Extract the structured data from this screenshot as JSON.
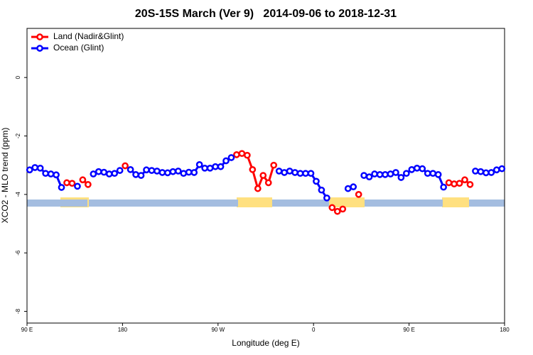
{
  "chart_data": {
    "type": "line",
    "title": "20S-15S March (Ver 9)   2014-09-06 to 2018-12-31",
    "xlabel": "Longitude (deg E)",
    "ylabel": "XCO2 - MLO trend (ppm)",
    "legend": "topleft",
    "xlim": [
      90,
      540
    ],
    "ylim": [
      -8.4,
      1.68
    ],
    "xticks": [
      {
        "value": 90,
        "label": "90 E"
      },
      {
        "value": 180,
        "label": "180"
      },
      {
        "value": 270,
        "label": "90 W"
      },
      {
        "value": 360,
        "label": "0"
      },
      {
        "value": 450,
        "label": "90 E"
      },
      {
        "value": 540,
        "label": "180"
      }
    ],
    "yticks": [
      0,
      -2,
      -4,
      -6,
      -8
    ],
    "x": [
      92.5,
      97.5,
      102.5,
      107.5,
      112.5,
      117.5,
      122.5,
      127.5,
      132.5,
      137.5,
      142.5,
      147.5,
      152.5,
      157.5,
      162.5,
      167.5,
      172.5,
      177.5,
      182.5,
      187.5,
      192.5,
      197.5,
      202.5,
      207.5,
      212.5,
      217.5,
      222.5,
      227.5,
      232.5,
      237.5,
      242.5,
      247.5,
      252.5,
      257.5,
      262.5,
      267.5,
      272.5,
      277.5,
      282.5,
      287.5,
      292.5,
      297.5,
      302.5,
      307.5,
      312.5,
      317.5,
      322.5,
      327.5,
      332.5,
      337.5,
      342.5,
      347.5,
      352.5,
      357.5,
      362.5,
      367.5,
      372.5,
      377.5,
      382.5,
      387.5,
      392.5,
      397.5,
      402.5,
      407.5,
      412.5,
      417.5,
      422.5,
      427.5,
      432.5,
      437.5,
      442.5,
      447.5,
      452.5,
      457.5,
      462.5,
      467.5,
      472.5,
      477.5,
      482.5,
      487.5,
      492.5,
      497.5,
      502.5,
      507.5,
      512.5,
      517.5,
      522.5,
      527.5,
      532.5,
      537.5
    ],
    "series": [
      {
        "name": "Land (Nadir&Glint)",
        "color": "#ff0000",
        "values": [
          null,
          null,
          null,
          null,
          null,
          null,
          null,
          -3.6,
          -3.62,
          null,
          -3.5,
          -3.66,
          null,
          null,
          null,
          null,
          null,
          null,
          -3.02,
          null,
          null,
          null,
          null,
          null,
          null,
          null,
          null,
          null,
          null,
          null,
          null,
          null,
          null,
          null,
          null,
          null,
          null,
          null,
          null,
          -2.64,
          -2.6,
          -2.66,
          -3.15,
          -3.8,
          -3.35,
          -3.6,
          -3.0,
          null,
          null,
          null,
          null,
          null,
          null,
          null,
          null,
          null,
          null,
          -4.45,
          -4.58,
          -4.5,
          null,
          null,
          -4.0,
          null,
          null,
          null,
          null,
          null,
          null,
          null,
          null,
          null,
          null,
          null,
          null,
          null,
          null,
          null,
          null,
          -3.6,
          -3.64,
          -3.62,
          -3.5,
          -3.66,
          null,
          null,
          null,
          null,
          null,
          null
        ]
      },
      {
        "name": "Ocean (Glint)",
        "color": "#0000ff",
        "values": [
          -3.16,
          -3.08,
          -3.1,
          -3.28,
          -3.3,
          -3.33,
          -3.76,
          null,
          null,
          -3.72,
          null,
          null,
          -3.3,
          -3.22,
          -3.24,
          -3.3,
          -3.28,
          -3.18,
          null,
          -3.15,
          -3.32,
          -3.35,
          -3.16,
          -3.18,
          -3.2,
          -3.25,
          -3.26,
          -3.22,
          -3.2,
          -3.28,
          -3.24,
          -3.25,
          -2.98,
          -3.1,
          -3.1,
          -3.05,
          -3.05,
          -2.85,
          -2.74,
          null,
          null,
          null,
          null,
          null,
          null,
          null,
          null,
          -3.2,
          -3.25,
          -3.2,
          -3.25,
          -3.28,
          -3.28,
          -3.28,
          -3.55,
          -3.85,
          -4.12,
          null,
          null,
          null,
          -3.8,
          -3.74,
          null,
          -3.35,
          -3.4,
          -3.3,
          -3.32,
          -3.32,
          -3.3,
          -3.25,
          -3.42,
          -3.28,
          -3.15,
          -3.1,
          -3.12,
          -3.28,
          -3.28,
          -3.32,
          -3.75,
          null,
          null,
          null,
          null,
          null,
          -3.2,
          -3.22,
          -3.26,
          -3.25,
          -3.16,
          -3.12
        ]
      }
    ]
  }
}
